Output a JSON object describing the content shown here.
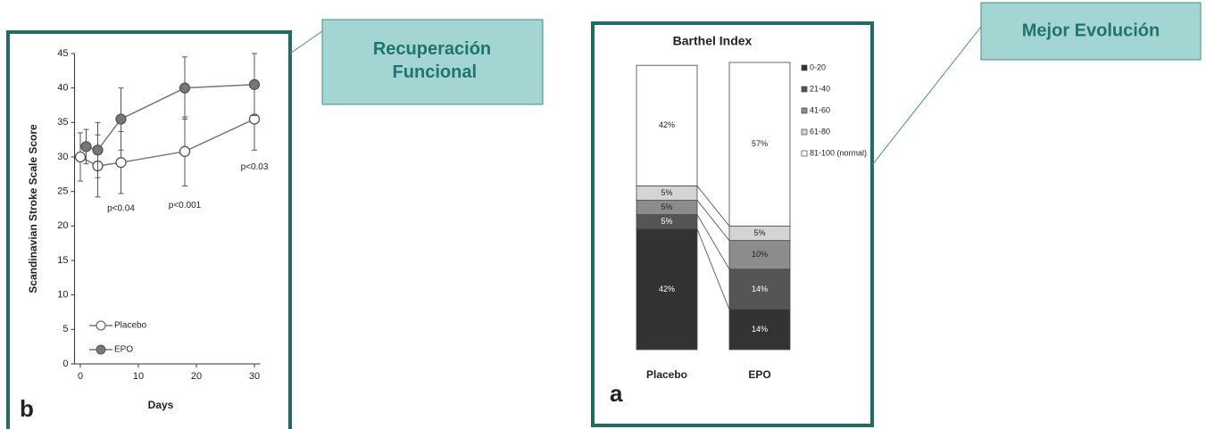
{
  "chart_data": [
    {
      "type": "line",
      "panel_label": "b",
      "ylabel": "Scandinavian Stroke Scale Score",
      "xlabel": "Days",
      "xlim": [
        -1,
        31
      ],
      "xticks": [
        0,
        10,
        20,
        30
      ],
      "ylim": [
        0,
        45
      ],
      "yticks": [
        0,
        5,
        10,
        15,
        20,
        25,
        30,
        35,
        40,
        45
      ],
      "legend": "lower left",
      "series": [
        {
          "name": "Placebo",
          "color": "#ffffff",
          "x": [
            0,
            3,
            7,
            18,
            30
          ],
          "values": [
            30,
            28.7,
            29.2,
            30.8,
            35.5
          ],
          "errors": [
            3.5,
            4.5,
            4.5,
            5,
            4.5
          ]
        },
        {
          "name": "EPO",
          "color": "#777777",
          "x": [
            1,
            3,
            7,
            18,
            30
          ],
          "values": [
            31.5,
            31,
            35.5,
            40,
            40.5
          ],
          "errors": [
            2.5,
            4,
            4.5,
            4.5,
            4.5
          ]
        }
      ],
      "annotations": [
        {
          "text": "p<0.04",
          "x": 7,
          "y": 22.5
        },
        {
          "text": "p<0.001",
          "x": 18,
          "y": 23
        },
        {
          "text": "p<0.03",
          "x": 30,
          "y": 28.5
        }
      ]
    },
    {
      "type": "stacked_bar",
      "panel_label": "a",
      "title": "Barthel Index",
      "categories": [
        "Placebo",
        "EPO"
      ],
      "legend": "right",
      "series": [
        {
          "name": "0-20",
          "color": "#333333",
          "values": [
            42,
            14
          ],
          "value_labels": [
            "42%",
            "14%"
          ]
        },
        {
          "name": "21-40",
          "color": "#555555",
          "values": [
            5,
            14
          ],
          "value_labels": [
            "5%",
            "14%"
          ]
        },
        {
          "name": "41-60",
          "color": "#8c8c8c",
          "values": [
            5,
            10
          ],
          "value_labels": [
            "5%",
            "10%"
          ]
        },
        {
          "name": "61-80",
          "color": "#d4d4d4",
          "values": [
            5,
            5
          ],
          "value_labels": [
            "5%",
            "5%"
          ]
        },
        {
          "name": "81-100 (normal)",
          "color": "#ffffff",
          "values": [
            42,
            57
          ],
          "value_labels": [
            "42%",
            "57%"
          ]
        }
      ]
    }
  ],
  "callouts": [
    "Recuperación Funcional",
    "Mejor Evolución"
  ]
}
